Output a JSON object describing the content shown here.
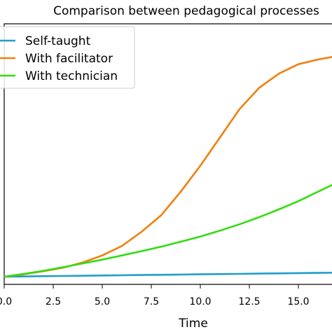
{
  "chart_data": {
    "type": "line",
    "title": "Comparison between pedagogical processes",
    "xlabel": "Time",
    "ylabel": "",
    "xlim": [
      0,
      17.5
    ],
    "ylim": [
      0,
      1
    ],
    "grid": false,
    "legend_position": "top-left",
    "x_ticks": [
      {
        "value": 0,
        "label": "0.0"
      },
      {
        "value": 2.5,
        "label": "2.5"
      },
      {
        "value": 5,
        "label": "5.0"
      },
      {
        "value": 7.5,
        "label": "7.5"
      },
      {
        "value": 10,
        "label": "10.0"
      },
      {
        "value": 12.5,
        "label": "12.5"
      },
      {
        "value": 15,
        "label": "15.0"
      }
    ],
    "x": [
      0,
      1,
      2,
      3,
      4,
      5,
      6,
      7,
      8,
      9,
      10,
      11,
      12,
      13,
      14,
      15,
      16,
      17,
      17.5
    ],
    "series": [
      {
        "name": "Self-taught",
        "color": "#1f9ec9",
        "values": [
          0.0,
          0.001,
          0.002,
          0.003,
          0.004,
          0.005,
          0.006,
          0.007,
          0.008,
          0.009,
          0.01,
          0.011,
          0.012,
          0.013,
          0.014,
          0.015,
          0.016,
          0.017,
          0.017
        ]
      },
      {
        "name": "With facilitator",
        "color": "#f07f0e",
        "values": [
          0.0,
          0.01,
          0.023,
          0.038,
          0.06,
          0.09,
          0.13,
          0.19,
          0.26,
          0.36,
          0.47,
          0.59,
          0.71,
          0.8,
          0.86,
          0.9,
          0.92,
          0.935,
          0.94
        ]
      },
      {
        "name": "With technician",
        "color": "#33dd11",
        "values": [
          0.0,
          0.012,
          0.025,
          0.04,
          0.056,
          0.072,
          0.09,
          0.108,
          0.127,
          0.148,
          0.17,
          0.195,
          0.222,
          0.252,
          0.285,
          0.32,
          0.36,
          0.4,
          0.43
        ]
      }
    ]
  }
}
